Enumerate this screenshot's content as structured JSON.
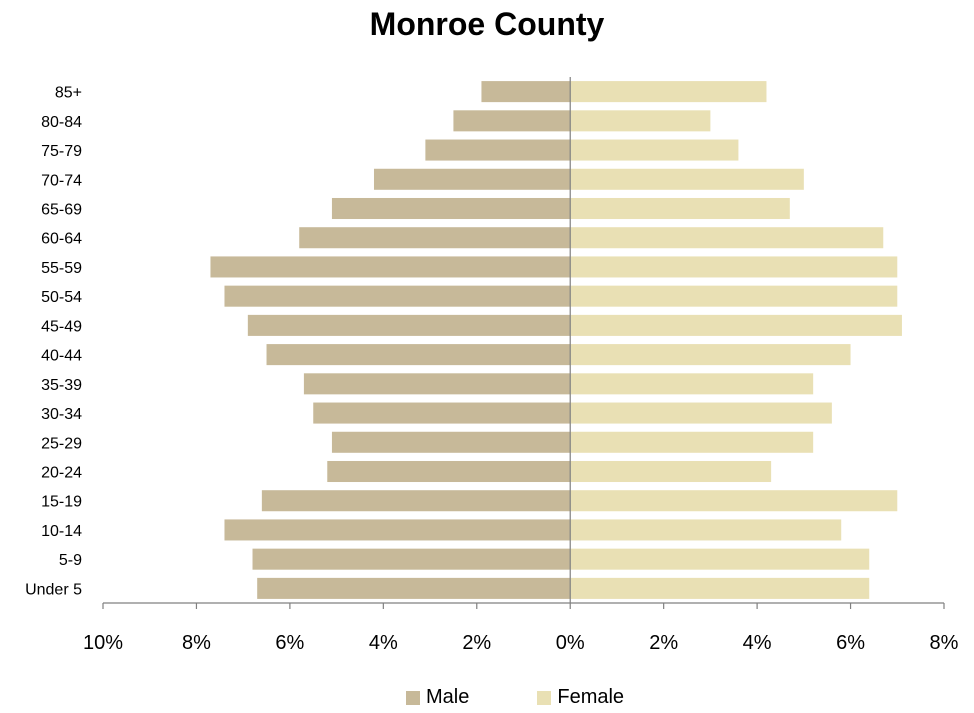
{
  "chart_data": {
    "type": "bar",
    "orientation": "horizontal",
    "subtype": "population-pyramid",
    "title": "Monroe County",
    "categories": [
      "Under 5",
      "5-9",
      "10-14",
      "15-19",
      "20-24",
      "25-29",
      "30-34",
      "35-39",
      "40-44",
      "45-49",
      "50-54",
      "55-59",
      "60-64",
      "65-69",
      "70-74",
      "75-79",
      "80-84",
      "85+"
    ],
    "series": [
      {
        "name": "Male",
        "color": "#c7b999",
        "values": [
          6.7,
          6.8,
          7.4,
          6.6,
          5.2,
          5.1,
          5.5,
          5.7,
          6.5,
          6.9,
          7.4,
          7.7,
          5.8,
          5.1,
          4.2,
          3.1,
          2.5,
          1.9
        ]
      },
      {
        "name": "Female",
        "color": "#e9e0b4",
        "values": [
          6.4,
          6.4,
          5.8,
          7.0,
          4.3,
          5.2,
          5.6,
          5.2,
          6.0,
          7.1,
          7.0,
          7.0,
          6.7,
          4.7,
          5.0,
          3.6,
          3.0,
          4.2
        ]
      }
    ],
    "xlim": [
      -10,
      8
    ],
    "xticks": [
      "10%",
      "8%",
      "6%",
      "4%",
      "2%",
      "0%",
      "2%",
      "4%",
      "6%",
      "8%"
    ],
    "grid": false,
    "legend_position": "bottom"
  }
}
